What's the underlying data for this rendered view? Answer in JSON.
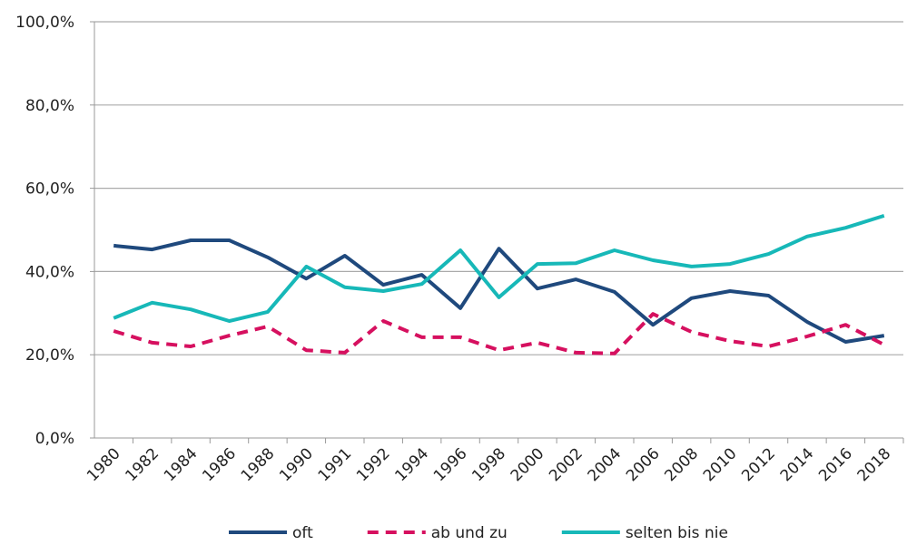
{
  "chart_data": {
    "type": "line",
    "categories": [
      "1980",
      "1982",
      "1984",
      "1986",
      "1988",
      "1990",
      "1991",
      "1992",
      "1994",
      "1996",
      "1998",
      "2000",
      "2002",
      "2004",
      "2006",
      "2008",
      "2010",
      "2012",
      "2014",
      "2016",
      "2018"
    ],
    "series": [
      {
        "name": "oft",
        "color": "#1f497d",
        "line_style": "solid",
        "values": [
          46.2,
          45.3,
          47.5,
          47.5,
          43.4,
          38.3,
          43.8,
          36.8,
          39.2,
          31.2,
          45.5,
          35.9,
          38.1,
          35.1,
          27.2,
          33.6,
          35.3,
          34.2,
          27.9,
          23.1,
          24.6
        ]
      },
      {
        "name": "ab und zu",
        "color": "#d6105f",
        "line_style": "dashed",
        "values": [
          25.7,
          22.9,
          22.0,
          24.6,
          26.8,
          21.1,
          20.5,
          28.1,
          24.2,
          24.2,
          21.1,
          22.9,
          20.5,
          20.3,
          29.8,
          25.5,
          23.3,
          22.0,
          24.4,
          27.2,
          22.4
        ]
      },
      {
        "name": "selten bis nie",
        "color": "#17b8b8",
        "line_style": "solid",
        "values": [
          28.8,
          32.5,
          30.9,
          28.1,
          30.3,
          41.2,
          36.2,
          35.3,
          37.0,
          45.1,
          33.8,
          41.8,
          42.0,
          45.1,
          42.7,
          41.2,
          41.8,
          44.2,
          48.4,
          50.5,
          53.4
        ]
      }
    ],
    "ylim": [
      0,
      100
    ],
    "yticks": [
      {
        "value": 0,
        "label": "0,0%"
      },
      {
        "value": 20,
        "label": "20,0%"
      },
      {
        "value": 40,
        "label": "40,0%"
      },
      {
        "value": 60,
        "label": "60,0%"
      },
      {
        "value": 80,
        "label": "80,0%"
      },
      {
        "value": 100,
        "label": "100,0%"
      }
    ],
    "grid": true,
    "legend": "bottom"
  }
}
